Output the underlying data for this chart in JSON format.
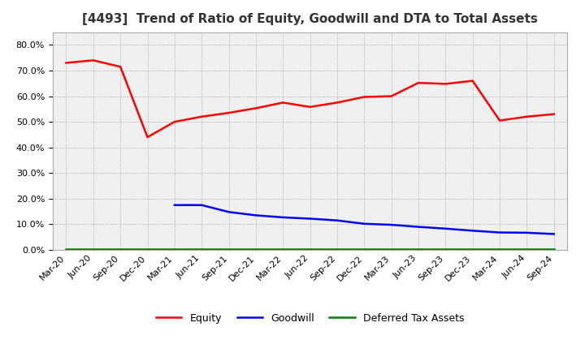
{
  "title": "[4493]  Trend of Ratio of Equity, Goodwill and DTA to Total Assets",
  "x_labels": [
    "Mar-20",
    "Jun-20",
    "Sep-20",
    "Dec-20",
    "Mar-21",
    "Jun-21",
    "Sep-21",
    "Dec-21",
    "Mar-22",
    "Jun-22",
    "Sep-22",
    "Dec-22",
    "Mar-23",
    "Jun-23",
    "Sep-23",
    "Dec-23",
    "Mar-24",
    "Jun-24",
    "Sep-24"
  ],
  "equity": [
    0.73,
    0.74,
    0.715,
    0.44,
    0.5,
    0.52,
    0.535,
    0.553,
    0.575,
    0.558,
    0.575,
    0.597,
    0.6,
    0.652,
    0.648,
    0.66,
    0.505,
    0.52,
    0.53
  ],
  "goodwill": [
    null,
    null,
    null,
    null,
    0.175,
    0.175,
    0.148,
    0.135,
    0.127,
    0.122,
    0.115,
    0.102,
    0.098,
    0.09,
    0.083,
    0.075,
    0.068,
    0.067,
    0.062
  ],
  "dta": [
    0.002,
    0.002,
    0.002,
    0.002,
    0.002,
    0.002,
    0.002,
    0.002,
    0.002,
    0.002,
    0.002,
    0.002,
    0.002,
    0.002,
    0.002,
    0.002,
    0.002,
    0.002,
    0.002
  ],
  "ylim": [
    0.0,
    0.85
  ],
  "yticks": [
    0.0,
    0.1,
    0.2,
    0.3,
    0.4,
    0.5,
    0.6,
    0.7,
    0.8
  ],
  "equity_color": "#FF0000",
  "goodwill_color": "#0000FF",
  "dta_color": "#008000",
  "background_color": "#FFFFFF",
  "plot_bg_color": "#F0F0F0",
  "grid_color": "#999999",
  "title_fontsize": 11,
  "title_color": "#333333",
  "legend_labels": [
    "Equity",
    "Goodwill",
    "Deferred Tax Assets"
  ],
  "tick_fontsize": 8,
  "legend_fontsize": 9
}
